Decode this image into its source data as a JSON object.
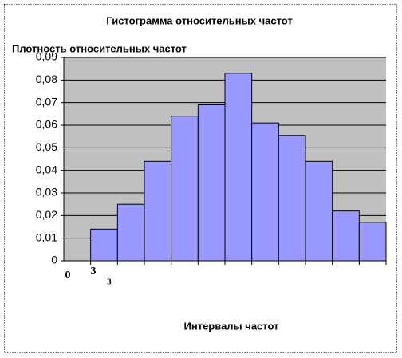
{
  "chart_data": {
    "type": "bar",
    "title": "Гистограмма относительных частот",
    "y_label": "Плотность относительных частот",
    "x_label": "Интервалы частот",
    "x_labels": [
      "0",
      "3",
      "3"
    ],
    "values": [
      null,
      0.014,
      0.025,
      0.044,
      0.064,
      0.069,
      0.083,
      0.061,
      0.0555,
      0.044,
      0.022,
      0.017
    ],
    "color": "#9999ff",
    "ylim": [
      0,
      0.09
    ],
    "yticks": [
      {
        "value": 0,
        "label": "0"
      },
      {
        "value": 0.01,
        "label": "0,01"
      },
      {
        "value": 0.02,
        "label": "0,02"
      },
      {
        "value": 0.03,
        "label": "0,03"
      },
      {
        "value": 0.04,
        "label": "0,04"
      },
      {
        "value": 0.05,
        "label": "0,05"
      },
      {
        "value": 0.06,
        "label": "0,06"
      },
      {
        "value": 0.07,
        "label": "0,07"
      },
      {
        "value": 0.08,
        "label": "0,08"
      },
      {
        "value": 0.09,
        "label": "0,09"
      }
    ],
    "grid": true
  }
}
